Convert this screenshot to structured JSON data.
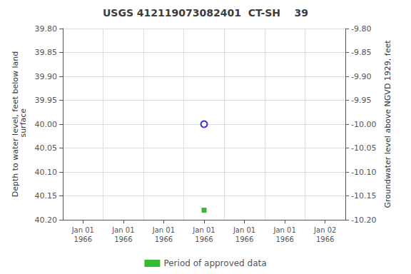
{
  "chart_data": {
    "type": "scatter",
    "title": "USGS 412119073082401  CT-SH    39",
    "y_label": "Depth to water level, feet below land\n surface",
    "y2_label": "Groundwater level above NGVD 1929, feet",
    "categories": [
      "Jan 01\n1966",
      "Jan 01\n1966",
      "Jan 01\n1966",
      "Jan 01\n1966",
      "Jan 01\n1966",
      "Jan 01\n1966",
      "Jan 02\n1966"
    ],
    "ylim": [
      40.2,
      39.8
    ],
    "yticks": [
      {
        "value": 39.8,
        "label": "39.80"
      },
      {
        "value": 39.85,
        "label": "39.85"
      },
      {
        "value": 39.9,
        "label": "39.90"
      },
      {
        "value": 39.95,
        "label": "39.95"
      },
      {
        "value": 40.0,
        "label": "40.00"
      },
      {
        "value": 40.05,
        "label": "40.05"
      },
      {
        "value": 40.1,
        "label": "40.10"
      },
      {
        "value": 40.15,
        "label": "40.15"
      },
      {
        "value": 40.2,
        "label": "40.20"
      }
    ],
    "y2lim": [
      -10.2,
      -9.8
    ],
    "y2ticks": [
      {
        "value": -9.8,
        "label": "-9.80"
      },
      {
        "value": -9.85,
        "label": "-9.85"
      },
      {
        "value": -9.9,
        "label": "-9.90"
      },
      {
        "value": -9.95,
        "label": "-9.95"
      },
      {
        "value": -10.0,
        "label": "-10.00"
      },
      {
        "value": -10.05,
        "label": "-10.05"
      },
      {
        "value": -10.1,
        "label": "-10.10"
      },
      {
        "value": -10.15,
        "label": "-10.15"
      },
      {
        "value": -10.2,
        "label": "-10.20"
      }
    ],
    "series": [
      {
        "color": "#0000cc",
        "marker": "hollow_circle",
        "values": [
          null,
          null,
          null,
          40.0,
          null,
          null,
          null
        ]
      },
      {
        "name": "Period of approved data",
        "color": "#00aa00",
        "marker": "square",
        "values": [
          null,
          null,
          null,
          40.18,
          null,
          null,
          null
        ]
      }
    ],
    "grid": true,
    "legend": "bottom"
  }
}
